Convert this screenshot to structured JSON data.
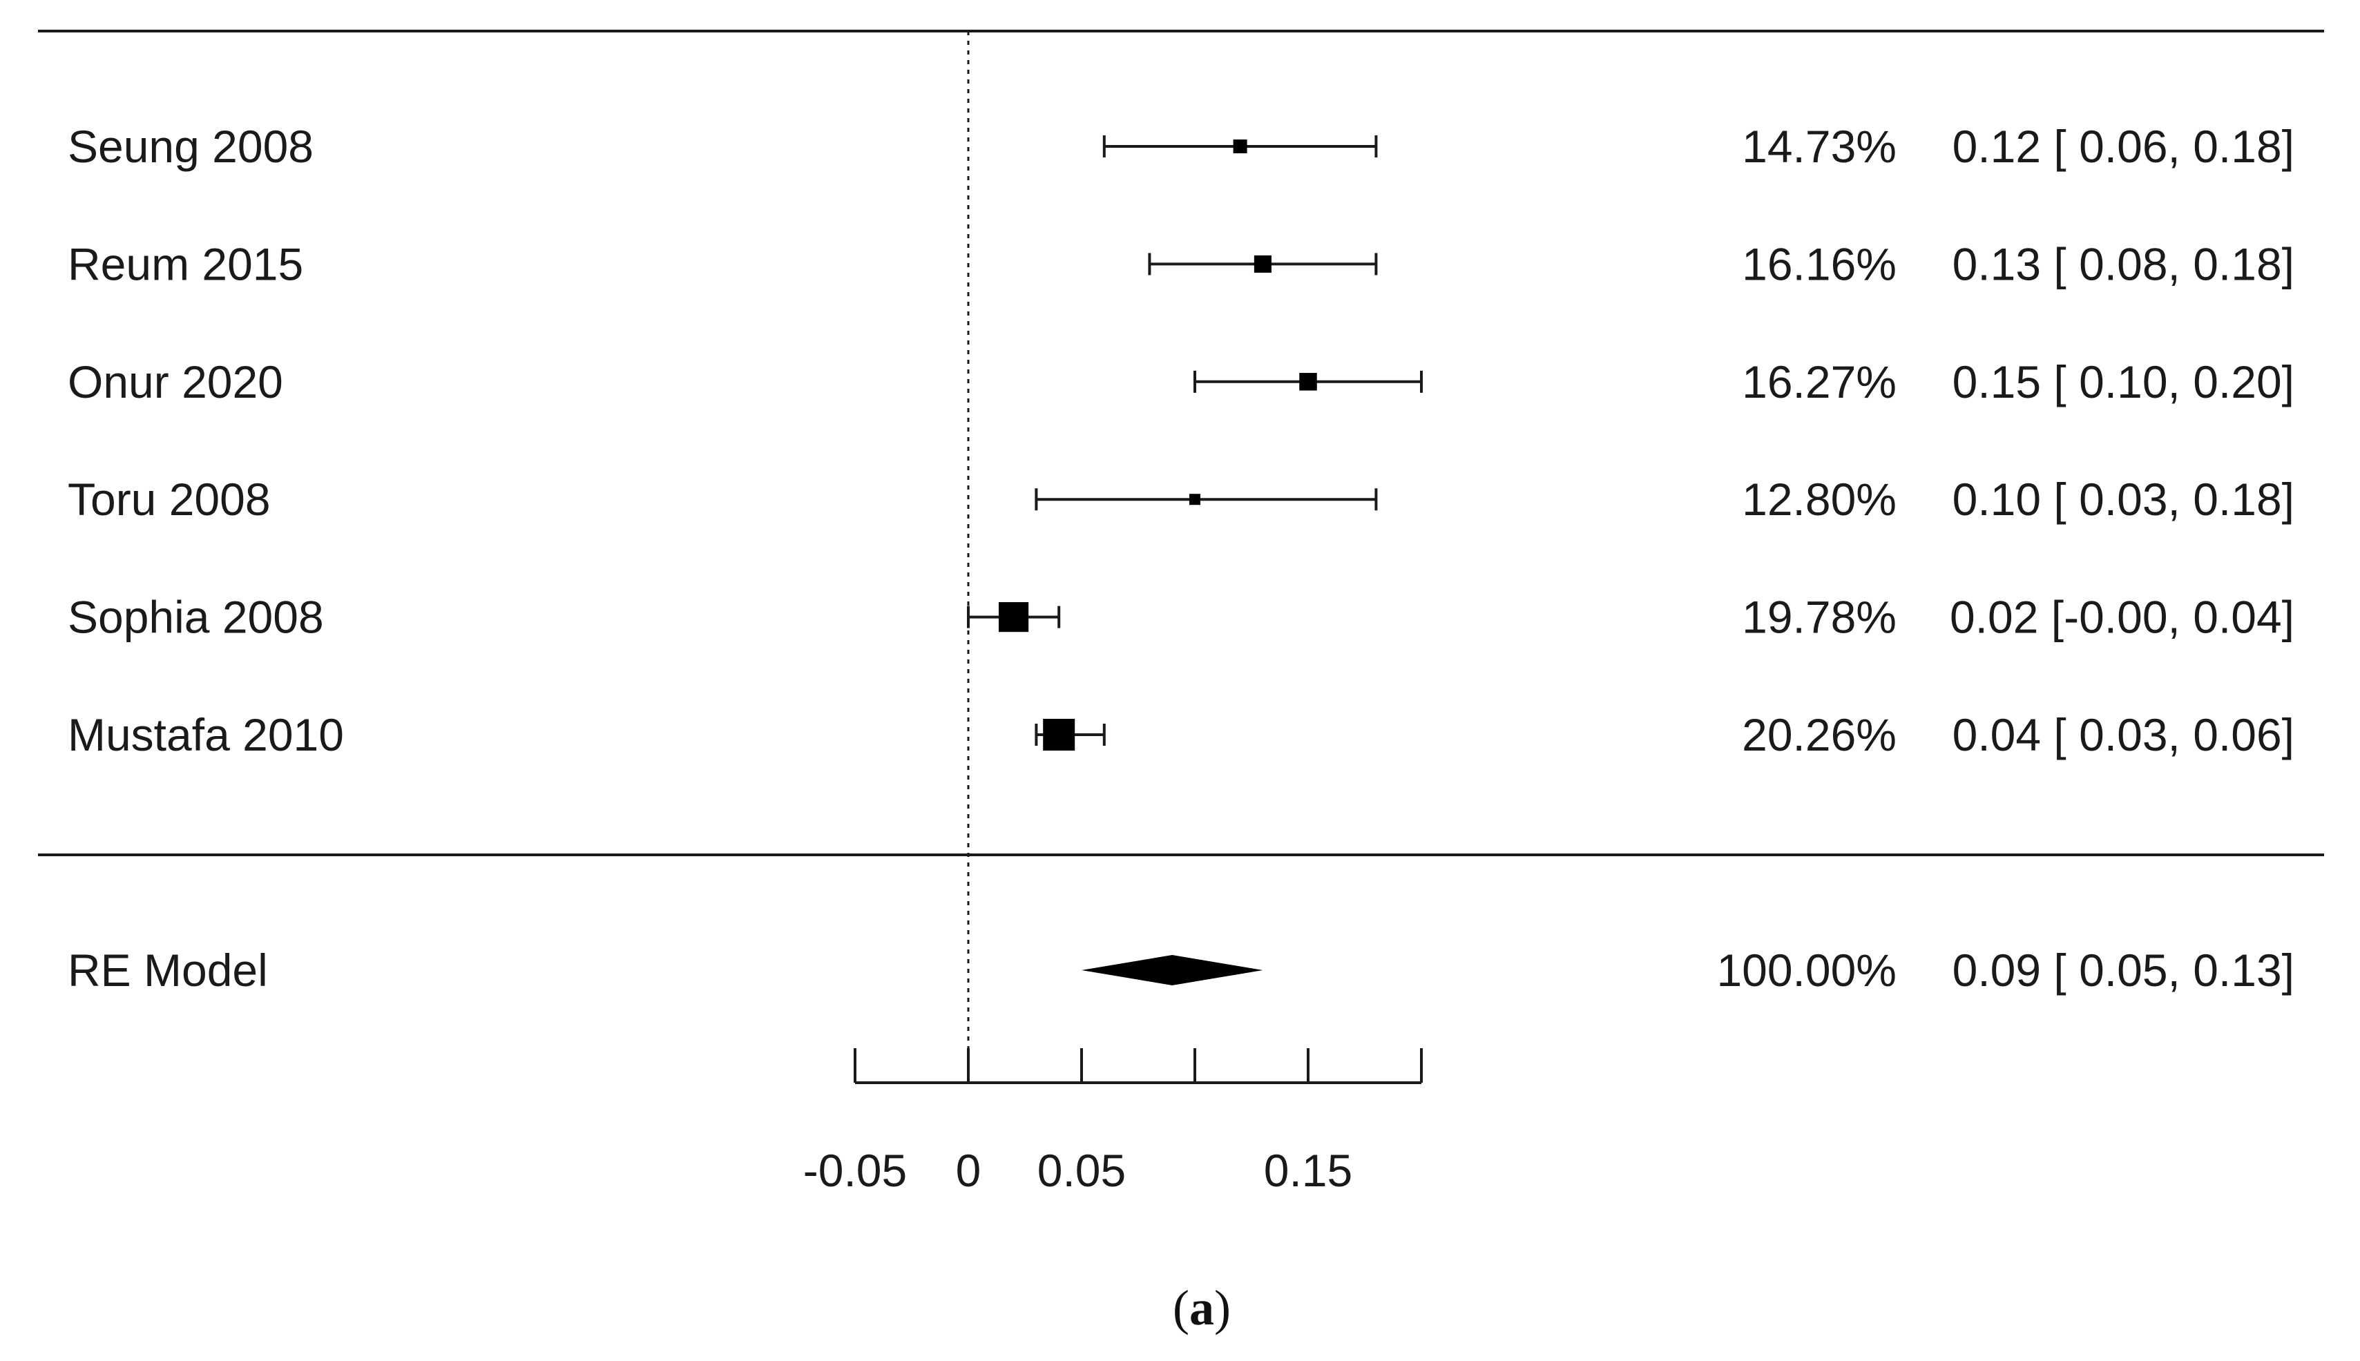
{
  "chart_data": {
    "type": "forest",
    "studies": [
      {
        "label": "Seung 2008",
        "estimate": 0.12,
        "ci_low": 0.06,
        "ci_high": 0.18,
        "weight_text": "14.73%",
        "estimate_text": "0.12 [ 0.06, 0.18]"
      },
      {
        "label": "Reum 2015",
        "estimate": 0.13,
        "ci_low": 0.08,
        "ci_high": 0.18,
        "weight_text": "16.16%",
        "estimate_text": "0.13 [ 0.08, 0.18]"
      },
      {
        "label": "Onur 2020",
        "estimate": 0.15,
        "ci_low": 0.1,
        "ci_high": 0.2,
        "weight_text": "16.27%",
        "estimate_text": "0.15 [ 0.10, 0.20]"
      },
      {
        "label": "Toru 2008",
        "estimate": 0.1,
        "ci_low": 0.03,
        "ci_high": 0.18,
        "weight_text": "12.80%",
        "estimate_text": "0.10 [ 0.03, 0.18]"
      },
      {
        "label": "Sophia 2008",
        "estimate": 0.02,
        "ci_low": -0.0,
        "ci_high": 0.04,
        "weight_text": "19.78%",
        "estimate_text": "0.02 [-0.00, 0.04]"
      },
      {
        "label": "Mustafa 2010",
        "estimate": 0.04,
        "ci_low": 0.03,
        "ci_high": 0.06,
        "weight_text": "20.26%",
        "estimate_text": "0.04 [ 0.03, 0.06]"
      }
    ],
    "summary": {
      "label": "RE Model",
      "estimate": 0.09,
      "ci_low": 0.05,
      "ci_high": 0.13,
      "weight_text": "100.00%",
      "estimate_text": "0.09 [ 0.05, 0.13]"
    },
    "x_axis": {
      "range": [
        -0.05,
        0.2
      ],
      "tick_values": [
        -0.05,
        0,
        0.05,
        0.1,
        0.15,
        0.2
      ],
      "tick_labels": [
        {
          "value": -0.05,
          "text": "-0.05"
        },
        {
          "value": 0,
          "text": "0"
        },
        {
          "value": 0.05,
          "text": "0.05"
        },
        {
          "value": 0.15,
          "text": "0.15"
        }
      ]
    },
    "reference_line": 0,
    "colors": {
      "marker": "#000000",
      "line": "#1a1a1a"
    }
  },
  "caption": {
    "open": "(",
    "letter": "a",
    "close": ")"
  }
}
